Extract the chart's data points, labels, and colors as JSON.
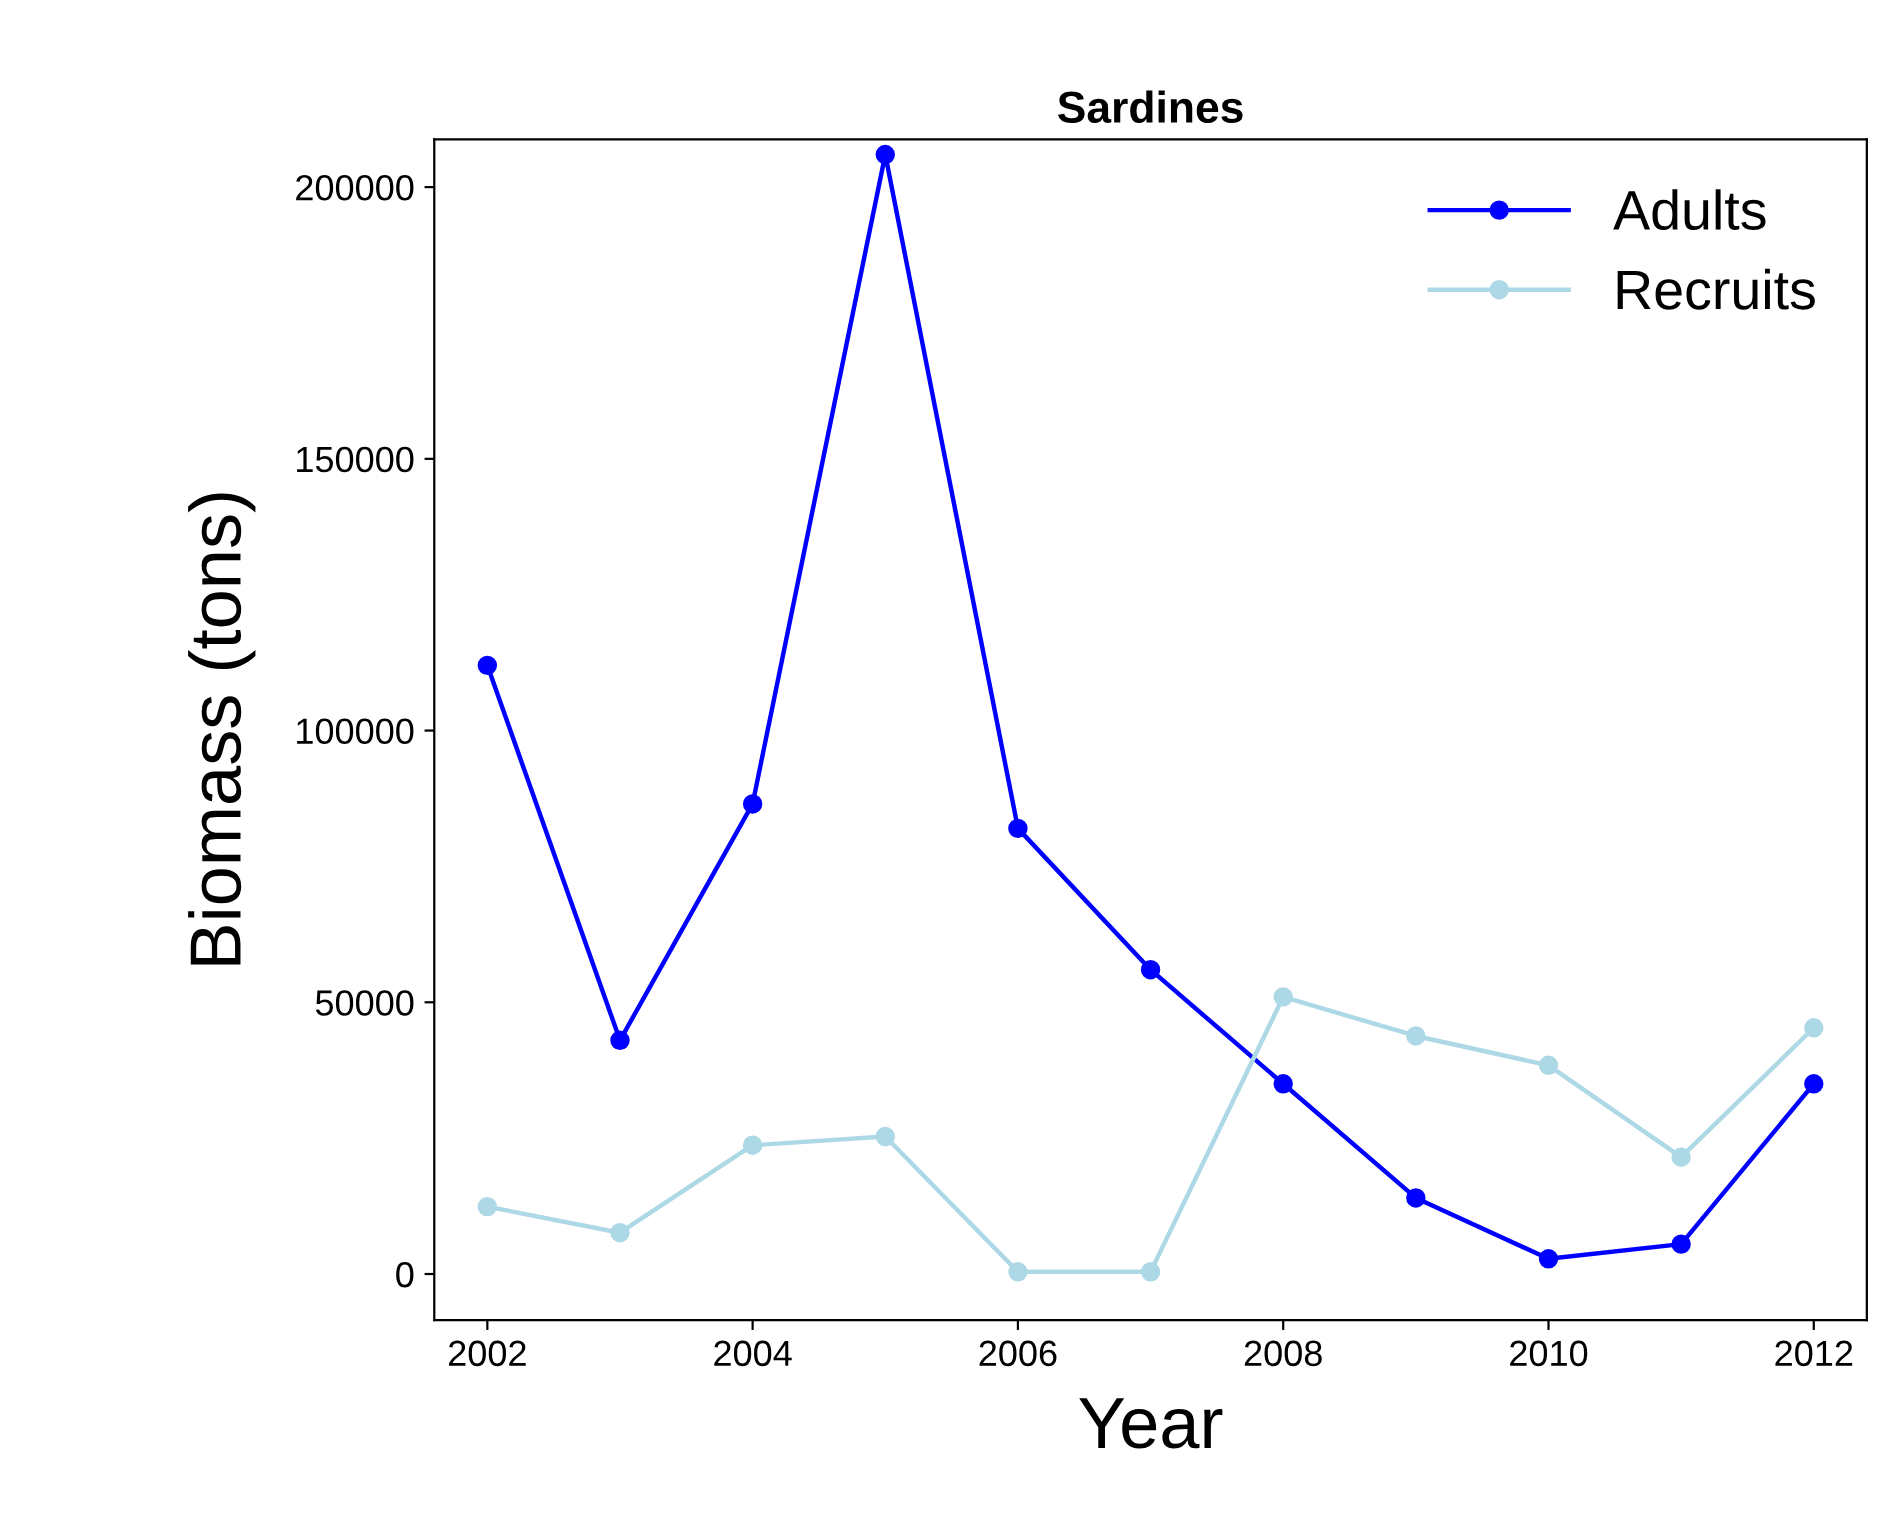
{
  "chart_data": {
    "type": "line",
    "title": "Sardines",
    "xlabel": "Year",
    "ylabel": "Biomass (tons)",
    "x": [
      2002,
      2003,
      2004,
      2005,
      2006,
      2007,
      2008,
      2009,
      2010,
      2011,
      2012
    ],
    "series": [
      {
        "name": "Adults",
        "color": "#0000ff",
        "values": [
          112000,
          43000,
          86500,
          206000,
          82000,
          56000,
          35000,
          14000,
          2800,
          5500,
          35000
        ]
      },
      {
        "name": "Recruits",
        "color": "#add8e6",
        "values": [
          12400,
          7600,
          23700,
          25300,
          400,
          400,
          51000,
          43800,
          38400,
          21500,
          45300
        ]
      }
    ],
    "xlim": [
      2001.6,
      2012.4
    ],
    "ylim": [
      -8500,
      208800
    ],
    "xticks": [
      2002,
      2004,
      2006,
      2008,
      2010,
      2012
    ],
    "yticks": [
      0,
      50000,
      100000,
      150000,
      200000
    ],
    "grid": false,
    "legend": "top right",
    "marker": "circle",
    "line_style": "solid"
  }
}
